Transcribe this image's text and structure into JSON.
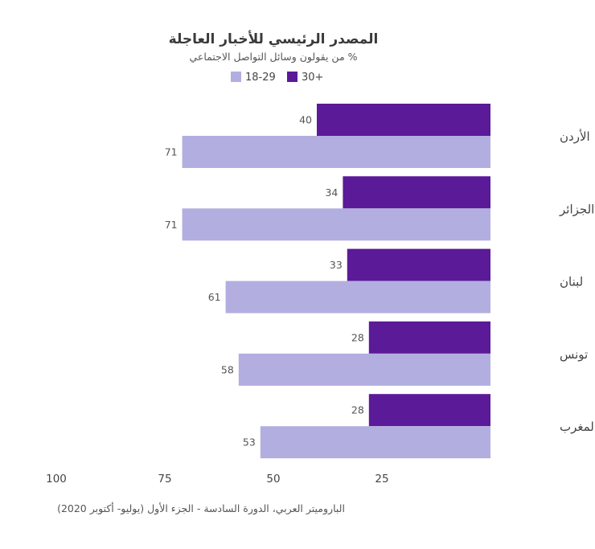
{
  "chart_data": {
    "type": "bar",
    "orientation": "horizontal",
    "direction": "rtl",
    "title": "المصدر الرئيسي للأخبار العاجلة",
    "subtitle": "% من يقولون وسائل التواصل الاجتماعي",
    "categories": [
      "الأردن",
      "الجزائر",
      "لبنان",
      "تونس",
      "المغرب"
    ],
    "series": [
      {
        "name": "30+",
        "color": "#5b1a97",
        "values": [
          40,
          34,
          33,
          28,
          28
        ]
      },
      {
        "name": "18-29",
        "color": "#b3aee0",
        "values": [
          71,
          71,
          61,
          58,
          53
        ]
      }
    ],
    "xlim": [
      0,
      100
    ],
    "x_ticks": [
      100,
      75,
      50,
      25
    ],
    "legend_position": "top",
    "grid": false,
    "source": "الباروميتر العربي، الدورة السادسة - الجزء الأول (يوليو- أكتوبر 2020)"
  }
}
